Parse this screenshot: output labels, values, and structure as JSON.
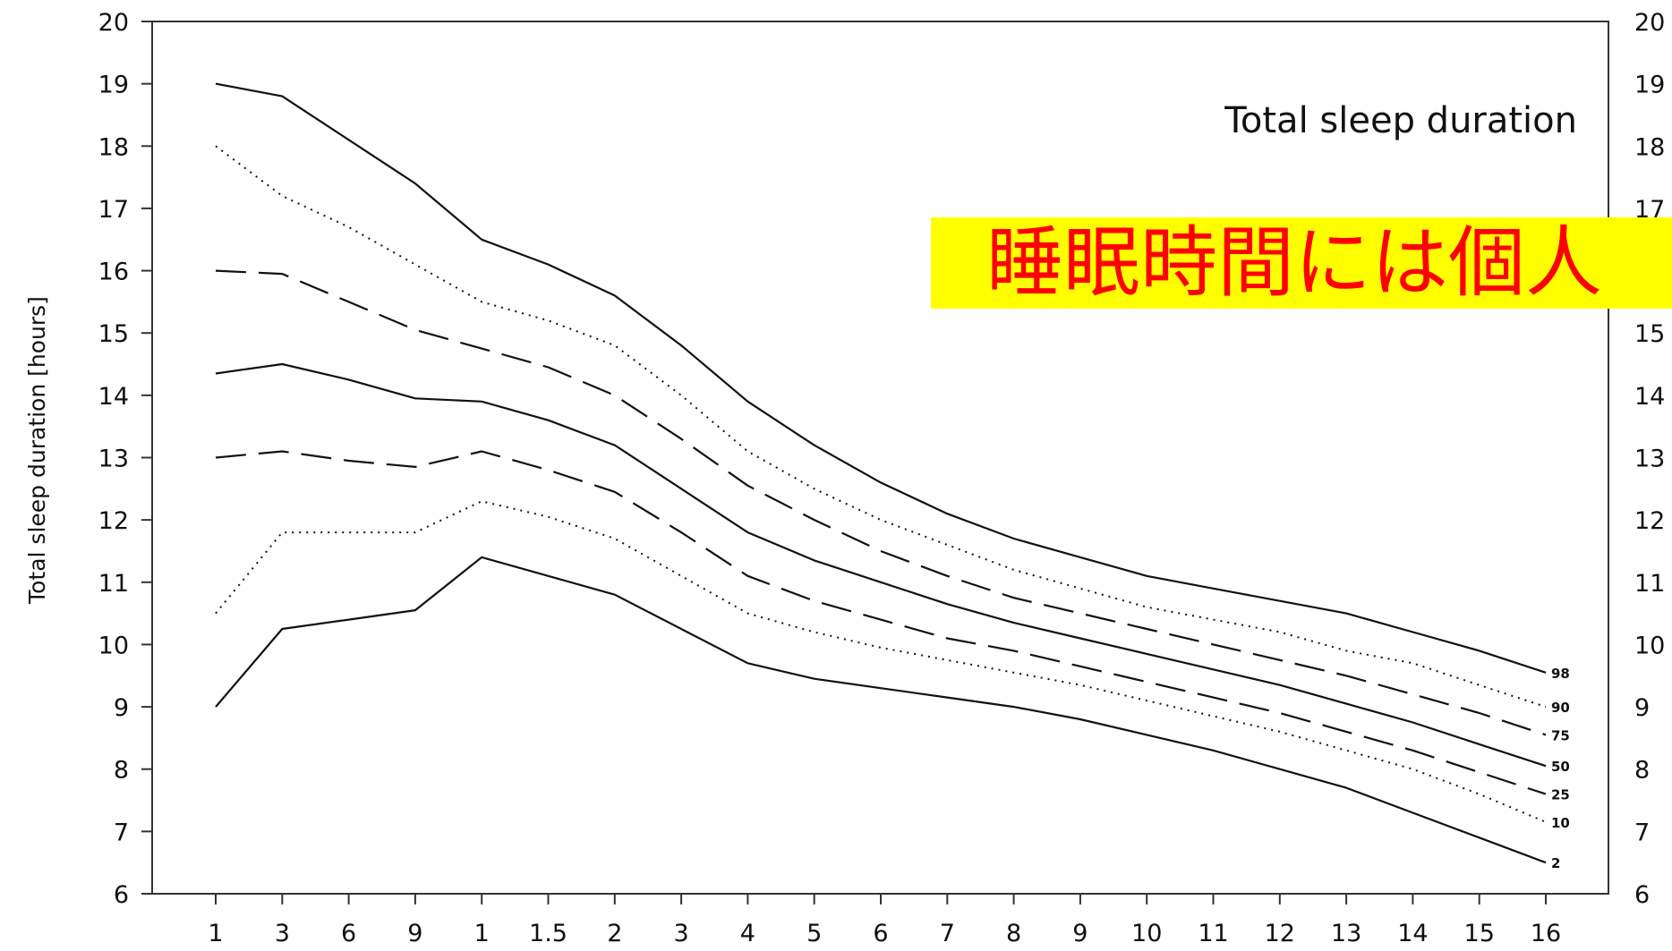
{
  "chart_data": {
    "type": "line",
    "title": "Total sleep duration",
    "ylabel": "Total sleep duration [hours]",
    "xlabel": "",
    "ylim": [
      6,
      20
    ],
    "yticks": [
      "6",
      "7",
      "8",
      "9",
      "10",
      "11",
      "12",
      "13",
      "14",
      "15",
      "16",
      "17",
      "18",
      "19",
      "20"
    ],
    "x": [
      "1",
      "3",
      "6",
      "9",
      "1",
      "1.5",
      "2",
      "3",
      "4",
      "5",
      "6",
      "7",
      "8",
      "9",
      "10",
      "11",
      "12",
      "13",
      "14",
      "15",
      "16"
    ],
    "grid": false,
    "right_axis": true,
    "series": [
      {
        "name": "98",
        "style": "solid",
        "values": [
          19.0,
          18.8,
          18.1,
          17.4,
          16.5,
          16.1,
          15.6,
          14.8,
          13.9,
          13.2,
          12.6,
          12.1,
          11.7,
          11.4,
          11.1,
          10.9,
          10.7,
          10.5,
          10.2,
          9.9,
          9.55
        ]
      },
      {
        "name": "90",
        "style": "dotted",
        "values": [
          18.0,
          17.2,
          16.7,
          16.1,
          15.5,
          15.2,
          14.8,
          14.0,
          13.1,
          12.5,
          12.0,
          11.6,
          11.2,
          10.9,
          10.6,
          10.4,
          10.2,
          9.9,
          9.7,
          9.35,
          9.0
        ]
      },
      {
        "name": "75",
        "style": "long-dash",
        "values": [
          16.0,
          15.95,
          15.5,
          15.05,
          14.75,
          14.45,
          14.0,
          13.3,
          12.55,
          12.0,
          11.5,
          11.1,
          10.75,
          10.5,
          10.25,
          10.0,
          9.75,
          9.5,
          9.2,
          8.9,
          8.55
        ]
      },
      {
        "name": "50",
        "style": "solid",
        "values": [
          14.35,
          14.5,
          14.25,
          13.95,
          13.9,
          13.6,
          13.2,
          12.5,
          11.8,
          11.35,
          11.0,
          10.65,
          10.35,
          10.1,
          9.85,
          9.6,
          9.35,
          9.05,
          8.75,
          8.4,
          8.05
        ]
      },
      {
        "name": "25",
        "style": "long-dash",
        "values": [
          13.0,
          13.1,
          12.95,
          12.85,
          13.1,
          12.8,
          12.45,
          11.8,
          11.1,
          10.7,
          10.4,
          10.1,
          9.9,
          9.65,
          9.4,
          9.15,
          8.9,
          8.6,
          8.3,
          7.95,
          7.6
        ]
      },
      {
        "name": "10",
        "style": "dotted",
        "values": [
          10.5,
          11.8,
          11.8,
          11.8,
          12.3,
          12.05,
          11.7,
          11.1,
          10.5,
          10.2,
          9.95,
          9.75,
          9.55,
          9.35,
          9.1,
          8.85,
          8.6,
          8.3,
          8.0,
          7.6,
          7.15
        ]
      },
      {
        "name": "2",
        "style": "solid",
        "values": [
          9.0,
          10.25,
          10.4,
          10.55,
          11.4,
          11.1,
          10.8,
          10.25,
          9.7,
          9.45,
          9.3,
          9.15,
          9.0,
          8.8,
          8.55,
          8.3,
          8.0,
          7.7,
          7.3,
          6.9,
          6.5
        ]
      }
    ]
  },
  "overlay": {
    "banner_text": "睡眠時間には個人"
  }
}
